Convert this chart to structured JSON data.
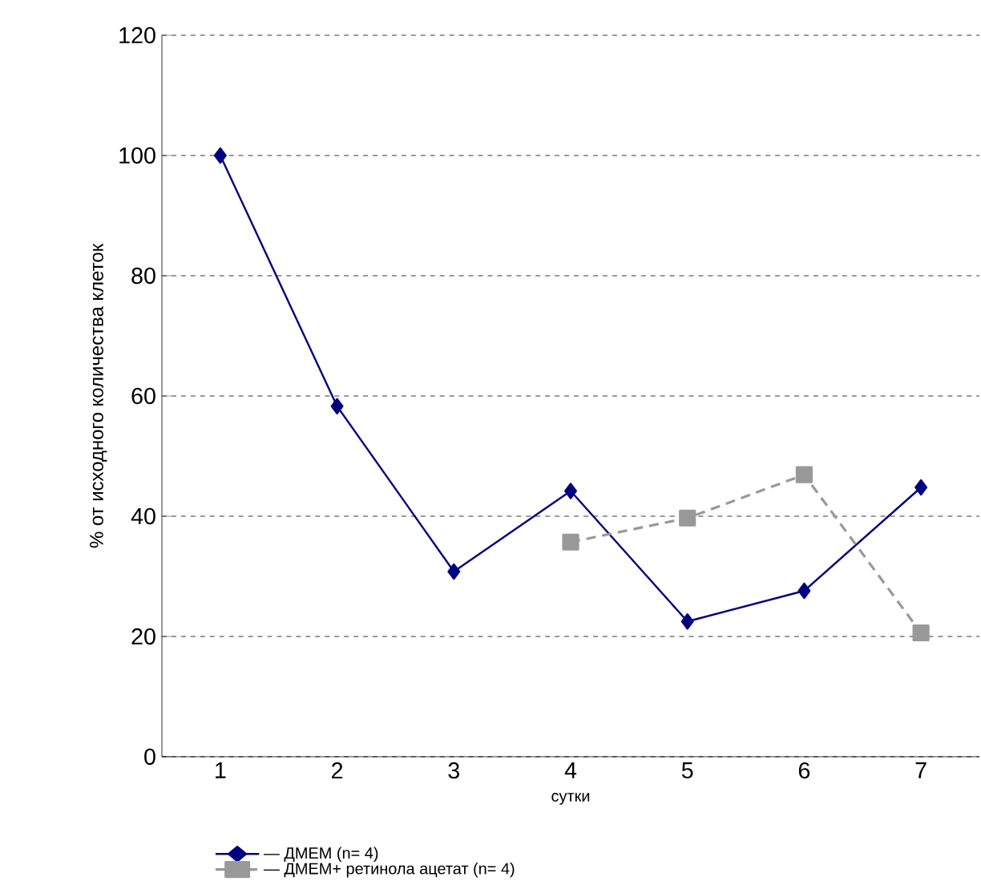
{
  "chart_data": {
    "type": "line",
    "xlabel": "сутки",
    "ylabel": "% от исходного количества клеток",
    "categories": [
      "1",
      "2",
      "3",
      "4",
      "5",
      "6",
      "7"
    ],
    "series": [
      {
        "name": "— ДМЕМ (n= 4)",
        "color": "#000080",
        "marker": "diamond",
        "line_style": "solid",
        "values": [
          100,
          58.3,
          30.8,
          44.2,
          22.5,
          27.6,
          44.8
        ]
      },
      {
        "name": "— ДМЕМ+ ретинола ацетат (n= 4)",
        "color": "#999999",
        "marker": "square",
        "line_style": "dashed",
        "values": [
          null,
          null,
          null,
          35.7,
          39.7,
          46.9,
          20.6
        ]
      }
    ],
    "ylim": [
      0,
      120
    ],
    "yticks": [
      0,
      20,
      40,
      60,
      80,
      100,
      120
    ],
    "grid": "y",
    "legend": "bottom"
  }
}
